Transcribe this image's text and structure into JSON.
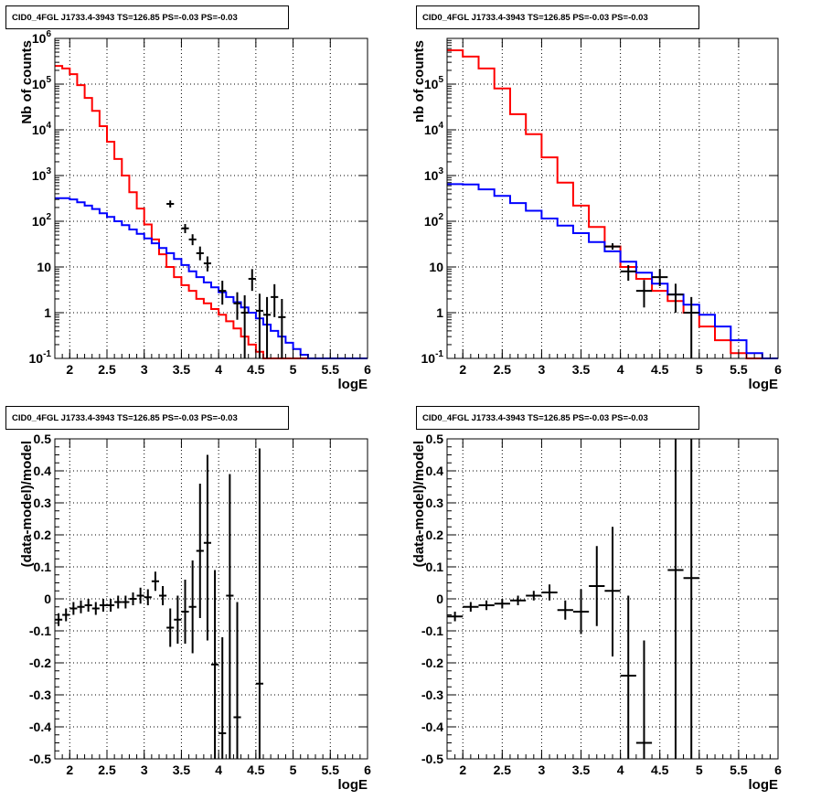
{
  "chart_data": [
    {
      "type": "step",
      "title": "CID0_4FGL J1733.4-3943 TS=126.85 PS=-0.03 PS=-0.03",
      "xlabel": "logE",
      "ylabel": "Nb of counts",
      "xlim": [
        1.8,
        6.0
      ],
      "ylim": [
        0.1,
        1000000
      ],
      "yscale": "log",
      "grid": true,
      "xticks": [
        "2",
        "2.5",
        "3",
        "3.5",
        "4",
        "4.5",
        "5",
        "5.5",
        "6"
      ],
      "yticks": [
        "10^-1",
        "1",
        "10",
        "10^2",
        "10^3",
        "10^4",
        "10^5",
        "10^6"
      ],
      "series": [
        {
          "color": "#ff0000",
          "edges": [
            1.8,
            1.9,
            2.0,
            2.1,
            2.2,
            2.3,
            2.4,
            2.5,
            2.6,
            2.7,
            2.8,
            2.9,
            3.0,
            3.1,
            3.2,
            3.3,
            3.4,
            3.5,
            3.6,
            3.7,
            3.8,
            3.9,
            4.0,
            4.1,
            4.2,
            4.3,
            4.4,
            4.5,
            4.6,
            4.7,
            4.8,
            4.9,
            5.0,
            5.1,
            5.2,
            5.3,
            5.4,
            5.5,
            5.6,
            5.7,
            5.8,
            5.9,
            6.0
          ],
          "values": [
            250000,
            220000,
            165000,
            95000,
            50000,
            26000,
            12000,
            5500,
            2300,
            1000,
            430,
            190,
            85,
            40,
            19,
            10,
            6,
            4,
            3,
            2,
            1.6,
            1.2,
            0.9,
            0.65,
            0.45,
            0.3,
            0.2,
            0.14,
            0.1,
            0.1,
            0.1,
            0.1,
            0.1,
            0.1,
            0.1,
            0.1,
            0.1,
            0.1,
            0.1,
            0.1,
            0.1,
            0.1
          ]
        },
        {
          "color": "#0000ff",
          "edges": [
            1.8,
            1.9,
            2.0,
            2.1,
            2.2,
            2.3,
            2.4,
            2.5,
            2.6,
            2.7,
            2.8,
            2.9,
            3.0,
            3.1,
            3.2,
            3.3,
            3.4,
            3.5,
            3.6,
            3.7,
            3.8,
            3.9,
            4.0,
            4.1,
            4.2,
            4.3,
            4.4,
            4.5,
            4.6,
            4.7,
            4.8,
            4.9,
            5.0,
            5.1,
            5.2,
            5.3,
            5.4,
            5.5,
            5.6,
            5.7,
            5.8,
            5.9,
            6.0
          ],
          "values": [
            320,
            320,
            300,
            260,
            220,
            185,
            150,
            125,
            100,
            82,
            66,
            53,
            42,
            33,
            26,
            20,
            15,
            11,
            8,
            6,
            4.6,
            3.6,
            2.8,
            2.2,
            1.7,
            1.3,
            1.0,
            0.75,
            0.55,
            0.4,
            0.3,
            0.22,
            0.16,
            0.12,
            0.1,
            0.1,
            0.1,
            0.1,
            0.1,
            0.1,
            0.1,
            0.1
          ]
        }
      ],
      "points": {
        "x": [
          3.35,
          3.55,
          3.65,
          3.75,
          3.85,
          4.05,
          4.25,
          4.35,
          4.45,
          4.55,
          4.65,
          4.75,
          4.85
        ],
        "y": [
          240,
          70,
          40,
          20,
          12,
          3,
          1.6,
          1.0,
          5.5,
          1.1,
          0.9,
          2.2,
          0.8
        ],
        "ylo": [
          200,
          55,
          30,
          14,
          8,
          1.5,
          0.7,
          0.1,
          3.0,
          0.1,
          0.1,
          0.8,
          0.1
        ],
        "yhi": [
          285,
          87,
          52,
          28,
          17,
          5,
          2.8,
          2.4,
          9,
          2.6,
          2.2,
          4.2,
          2.0
        ],
        "xerr": 0.05
      }
    },
    {
      "type": "step",
      "title": "CID0_4FGL J1733.4-3943 TS=126.85 PS=-0.03 PS=-0.03",
      "xlabel": "logE",
      "ylabel": "nb of counts",
      "xlim": [
        1.8,
        6.0
      ],
      "ylim": [
        0.1,
        1000000
      ],
      "yscale": "log",
      "grid": true,
      "xticks": [
        "2",
        "2.5",
        "3",
        "3.5",
        "4",
        "4.5",
        "5",
        "5.5",
        "6"
      ],
      "yticks": [
        "10^-1",
        "1",
        "10",
        "10^2",
        "10^3",
        "10^4",
        "10^5"
      ],
      "series": [
        {
          "color": "#ff0000",
          "edges": [
            1.8,
            2.0,
            2.2,
            2.4,
            2.6,
            2.8,
            3.0,
            3.2,
            3.4,
            3.6,
            3.8,
            4.0,
            4.2,
            4.4,
            4.6,
            4.8,
            5.0,
            5.2,
            5.4,
            5.6,
            5.8,
            6.0
          ],
          "values": [
            550000,
            400000,
            220000,
            80000,
            22000,
            8000,
            2500,
            700,
            220,
            75,
            28,
            10,
            5.5,
            3.0,
            1.8,
            1.0,
            0.5,
            0.25,
            0.13,
            0.1,
            0.1
          ]
        },
        {
          "color": "#0000ff",
          "edges": [
            1.8,
            2.0,
            2.2,
            2.4,
            2.6,
            2.8,
            3.0,
            3.2,
            3.4,
            3.6,
            3.8,
            4.0,
            4.2,
            4.4,
            4.6,
            4.8,
            5.0,
            5.2,
            5.4,
            5.6,
            5.8,
            6.0
          ],
          "values": [
            650,
            640,
            500,
            360,
            250,
            170,
            115,
            80,
            55,
            35,
            22,
            13,
            7.5,
            4.3,
            2.5,
            1.5,
            0.9,
            0.5,
            0.25,
            0.13,
            0.1
          ]
        }
      ],
      "points": {
        "x": [
          3.9,
          4.1,
          4.3,
          4.5,
          4.7,
          4.9
        ],
        "y": [
          28,
          8,
          3,
          6,
          2.5,
          1
        ],
        "ylo": [
          24,
          5,
          1.3,
          3.8,
          1.0,
          0.1
        ],
        "yhi": [
          33,
          11,
          5.2,
          9,
          4.3,
          2.2
        ],
        "xerr": 0.1
      }
    },
    {
      "type": "scatter",
      "title": "CID0_4FGL J1733.4-3943 TS=126.85 PS=-0.03 PS=-0.03",
      "xlabel": "logE",
      "ylabel": "(data-model)/model",
      "xlim": [
        1.8,
        6.0
      ],
      "ylim": [
        -0.5,
        0.5
      ],
      "grid": true,
      "xticks": [
        "2",
        "2.5",
        "3",
        "3.5",
        "4",
        "4.5",
        "5",
        "5.5",
        "6"
      ],
      "yticks": [
        "-0.5",
        "-0.4",
        "-0.3",
        "-0.2",
        "-0.1",
        "0",
        "0.1",
        "0.2",
        "0.3",
        "0.4",
        "0.5"
      ],
      "points": {
        "x": [
          1.85,
          1.95,
          2.05,
          2.15,
          2.25,
          2.35,
          2.45,
          2.55,
          2.65,
          2.75,
          2.85,
          2.95,
          3.05,
          3.15,
          3.25,
          3.35,
          3.45,
          3.55,
          3.65,
          3.75,
          3.85,
          3.95,
          4.05,
          4.15,
          4.25,
          4.55
        ],
        "y": [
          -0.065,
          -0.05,
          -0.03,
          -0.025,
          -0.02,
          -0.03,
          -0.02,
          -0.02,
          -0.01,
          -0.01,
          0.0,
          0.01,
          0.005,
          0.055,
          0.01,
          -0.09,
          -0.065,
          -0.04,
          -0.025,
          0.15,
          0.175,
          -0.205,
          -0.42,
          0.01,
          -0.37,
          -0.265
        ],
        "ylo": [
          -0.085,
          -0.07,
          -0.05,
          -0.045,
          -0.04,
          -0.05,
          -0.04,
          -0.04,
          -0.03,
          -0.03,
          -0.02,
          -0.015,
          -0.02,
          0.025,
          -0.02,
          -0.15,
          -0.14,
          -0.14,
          -0.17,
          -0.06,
          -0.13,
          -0.5,
          -0.5,
          -0.5,
          -0.5,
          -0.5
        ],
        "yhi": [
          -0.045,
          -0.03,
          -0.01,
          -0.005,
          0.0,
          -0.01,
          0.0,
          0.0,
          0.01,
          0.01,
          0.02,
          0.035,
          0.03,
          0.085,
          0.04,
          -0.03,
          0.01,
          0.06,
          0.12,
          0.36,
          0.45,
          0.09,
          -0.12,
          0.39,
          -0.01,
          0.47
        ],
        "xerr": 0.05
      }
    },
    {
      "type": "scatter",
      "title": "CID0_4FGL J1733.4-3943 TS=126.85 PS=-0.03 PS=-0.03",
      "xlabel": "logE",
      "ylabel": "(data-model)/model",
      "xlim": [
        1.8,
        6.0
      ],
      "ylim": [
        -0.5,
        0.5
      ],
      "grid": true,
      "xticks": [
        "2",
        "2.5",
        "3",
        "3.5",
        "4",
        "4.5",
        "5",
        "5.5",
        "6"
      ],
      "yticks": [
        "-0.5",
        "-0.4",
        "-0.3",
        "-0.2",
        "-0.1",
        "0",
        "0.1",
        "0.2",
        "0.3",
        "0.4",
        "0.5"
      ],
      "points": {
        "x": [
          1.9,
          2.1,
          2.3,
          2.5,
          2.7,
          2.9,
          3.1,
          3.3,
          3.5,
          3.7,
          3.9,
          4.1,
          4.3,
          4.7,
          4.9
        ],
        "y": [
          -0.055,
          -0.025,
          -0.02,
          -0.015,
          -0.005,
          0.01,
          0.02,
          -0.035,
          -0.04,
          0.04,
          0.025,
          -0.24,
          -0.45,
          0.09,
          0.065
        ],
        "ylo": [
          -0.07,
          -0.04,
          -0.035,
          -0.03,
          -0.02,
          -0.005,
          -0.005,
          -0.065,
          -0.11,
          -0.085,
          -0.18,
          -0.5,
          -0.5,
          -0.5,
          -0.5
        ],
        "yhi": [
          -0.04,
          -0.01,
          -0.005,
          0.0,
          0.01,
          0.025,
          0.045,
          -0.005,
          0.03,
          0.165,
          0.225,
          0.01,
          -0.13,
          0.5,
          0.5
        ],
        "xerr": 0.1
      }
    }
  ]
}
